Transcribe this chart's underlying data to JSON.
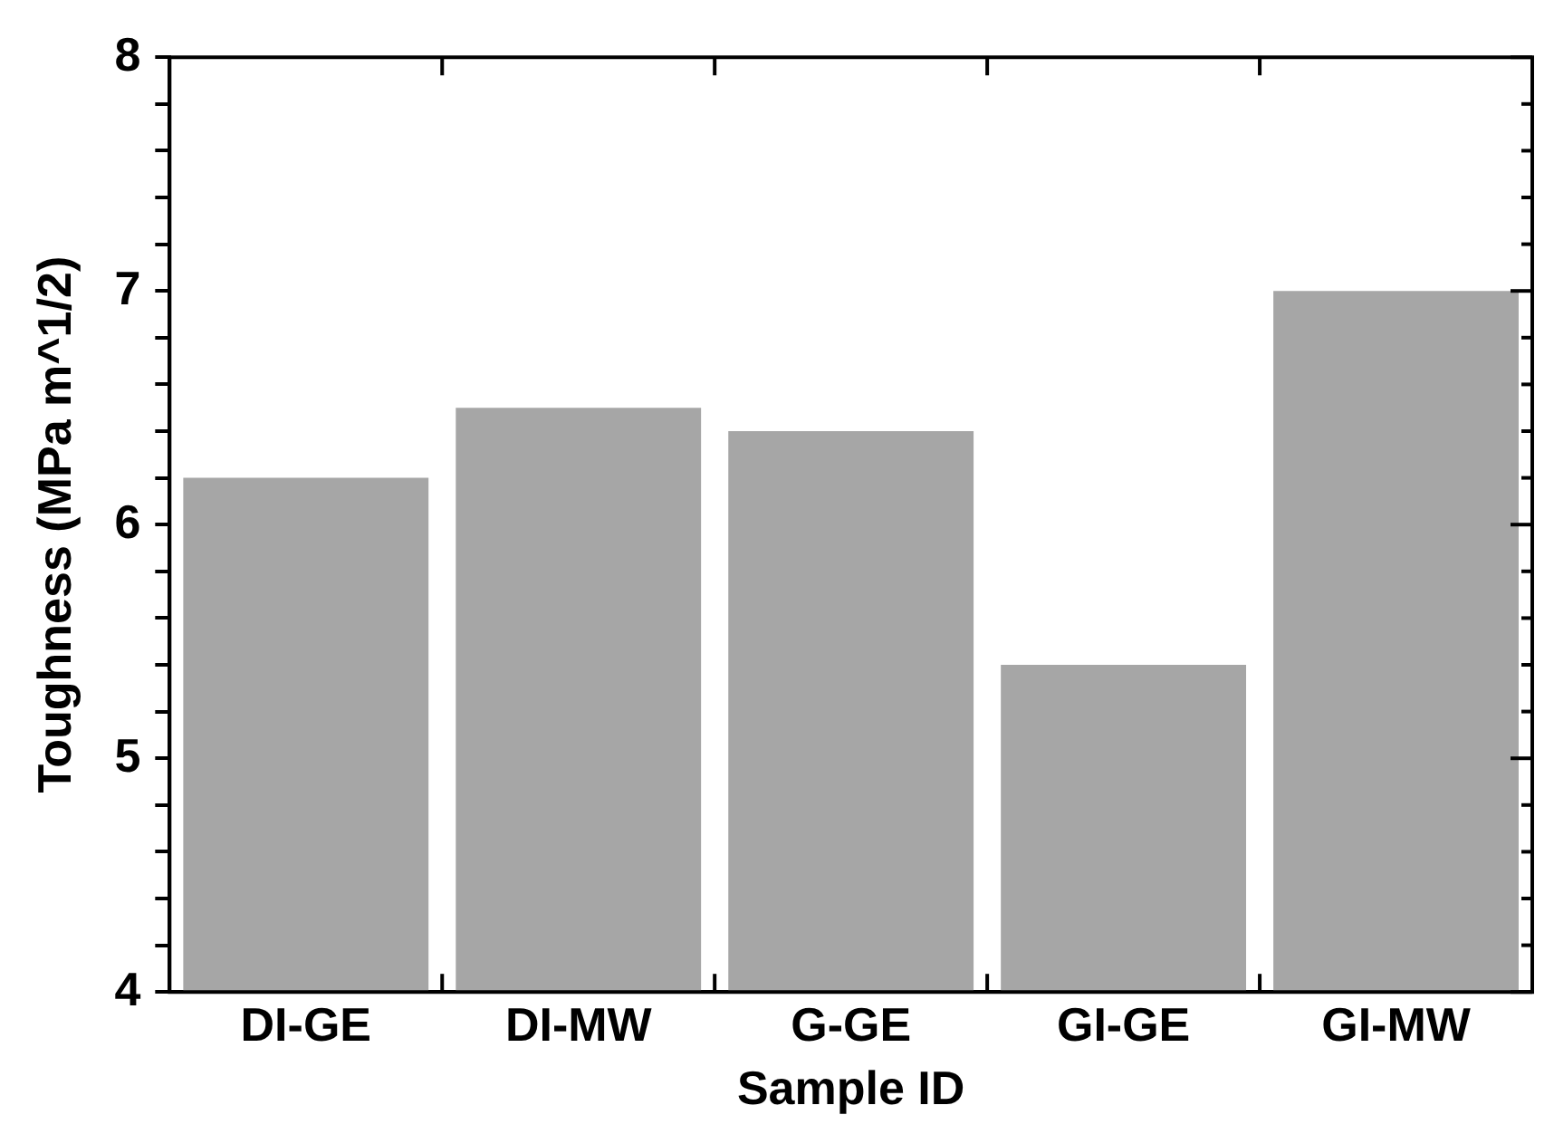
{
  "chart_data": {
    "type": "bar",
    "xlabel": "Sample ID",
    "ylabel": "Toughness (MPa m^1/2)",
    "categories": [
      "DI-GE",
      "DI-MW",
      "G-GE",
      "GI-GE",
      "GI-MW"
    ],
    "values": [
      6.2,
      6.5,
      6.4,
      5.4,
      7.0
    ],
    "color": "#a6a6a6",
    "ylim": [
      4,
      8
    ],
    "yticks": [
      4,
      {
        "value": 4.2,
        "label": null
      },
      {
        "value": 4.4,
        "label": null
      },
      {
        "value": 4.6,
        "label": null
      },
      {
        "value": 4.8,
        "label": null
      },
      5,
      {
        "value": 5.2,
        "label": null
      },
      {
        "value": 5.4,
        "label": null
      },
      {
        "value": 5.6,
        "label": null
      },
      {
        "value": 5.8,
        "label": null
      },
      6,
      {
        "value": 6.2,
        "label": null
      },
      {
        "value": 6.4,
        "label": null
      },
      {
        "value": 6.6,
        "label": null
      },
      {
        "value": 6.8,
        "label": null
      },
      7,
      {
        "value": 7.2,
        "label": null
      },
      {
        "value": 7.4,
        "label": null
      },
      {
        "value": 7.6,
        "label": null
      },
      {
        "value": 7.8,
        "label": null
      },
      8
    ],
    "grid": false,
    "legend": false
  }
}
